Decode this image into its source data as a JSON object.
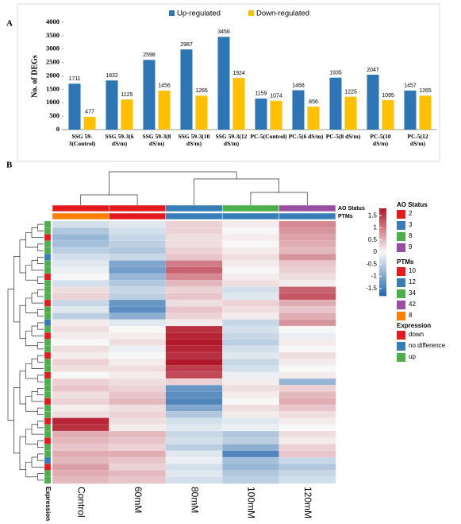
{
  "chart_data": [
    {
      "type": "bar",
      "panel_label": "A",
      "ylabel": "No. of DEGs",
      "categories": [
        "SSG 59-3(Control)",
        "SSG 59-3(6 dS/m)",
        "SSG 59-3(8 dS/m)",
        "SSG 59-3(10 dS/m)",
        "SSG 59-3(12 dS/m)",
        "PC-5(Control)",
        "PC-5(6 dS/m)",
        "PC-5(8 dS/m)",
        "PC-5(10 dS/m)",
        "PC-5(12 dS/m)"
      ],
      "series": [
        {
          "name": "Up-regulated",
          "color": "#2e75b6",
          "values": [
            1711,
            1832,
            2598,
            2987,
            3456,
            1159,
            1468,
            1935,
            2047,
            1457
          ]
        },
        {
          "name": "Down-regulated",
          "color": "#ffc000",
          "values": [
            477,
            1125,
            1456,
            1265,
            1924,
            1074,
            856,
            1225,
            1095,
            1265
          ]
        }
      ],
      "ylim": [
        0,
        4000
      ],
      "yticks": [
        0,
        500,
        1000,
        1500,
        2000,
        2500,
        3000,
        3500,
        4000
      ],
      "legend": "top"
    },
    {
      "type": "heatmap",
      "panel_label": "B",
      "columns": [
        "Control",
        "60mM",
        "80mM",
        "100mM",
        "120mM"
      ],
      "row_annotation_label": "Expression",
      "zlim": [
        -1.8,
        1.8
      ],
      "colorscale": [
        "#2166ac",
        "#f7f7f7",
        "#b2182b"
      ],
      "colorbar_ticks": [
        1.5,
        1,
        0.5,
        0,
        -0.5,
        -1,
        -1.5
      ],
      "ao_status_title": "AO Status",
      "ptms_title": "PTMs",
      "expression_title": "Expression",
      "ao_status_legend": [
        {
          "label": "2",
          "color": "#e41a1c"
        },
        {
          "label": "3",
          "color": "#377eb8"
        },
        {
          "label": "8",
          "color": "#4daf4a"
        },
        {
          "label": "9",
          "color": "#984ea3"
        }
      ],
      "ptms_legend": [
        {
          "label": "10",
          "color": "#e41a1c"
        },
        {
          "label": "12",
          "color": "#377eb8"
        },
        {
          "label": "34",
          "color": "#4daf4a"
        },
        {
          "label": "42",
          "color": "#984ea3"
        },
        {
          "label": "8",
          "color": "#ff7f00"
        }
      ],
      "expression_legend": [
        {
          "label": "down",
          "color": "#e41a1c"
        },
        {
          "label": "no difference",
          "color": "#377eb8"
        },
        {
          "label": "up",
          "color": "#4daf4a"
        }
      ],
      "ao_status": [
        "2",
        "2",
        "3",
        "8",
        "9"
      ],
      "ptms": [
        "8",
        "10",
        "12",
        "12",
        "12"
      ],
      "row_expression": [
        "up",
        "up",
        "down",
        "up",
        "up",
        "no difference",
        "up",
        "up",
        "down",
        "up",
        "up",
        "up",
        "down",
        "up",
        "up",
        "no difference",
        "up",
        "down",
        "up",
        "up",
        "down",
        "up",
        "up",
        "down",
        "up",
        "up",
        "up",
        "down",
        "up",
        "up",
        "down",
        "up",
        "up",
        "down",
        "up",
        "up",
        "no difference",
        "down",
        "up",
        "up"
      ],
      "matrix": [
        [
          -0.3,
          -0.2,
          0.3,
          0.1,
          0.9
        ],
        [
          -0.6,
          -0.3,
          0.3,
          0.0,
          0.8
        ],
        [
          -0.8,
          -0.4,
          0.2,
          0.1,
          0.7
        ],
        [
          -0.7,
          -0.5,
          0.2,
          0.0,
          0.6
        ],
        [
          -0.5,
          -0.6,
          0.3,
          0.1,
          0.5
        ],
        [
          -0.3,
          -0.4,
          0.4,
          0.2,
          0.8
        ],
        [
          -0.2,
          -1.0,
          1.0,
          0.1,
          0.4
        ],
        [
          -0.1,
          -1.1,
          1.2,
          0.0,
          0.3
        ],
        [
          0.0,
          -0.8,
          0.9,
          0.1,
          0.2
        ],
        [
          -0.3,
          -0.6,
          0.5,
          0.2,
          0.1
        ],
        [
          0.2,
          -0.4,
          0.3,
          -0.3,
          1.2
        ],
        [
          0.3,
          -0.5,
          0.4,
          -0.2,
          1.3
        ],
        [
          -0.4,
          -1.2,
          0.2,
          0.3,
          0.6
        ],
        [
          -0.2,
          -1.3,
          0.4,
          0.2,
          0.4
        ],
        [
          -0.5,
          -0.9,
          0.3,
          0.1,
          0.6
        ],
        [
          0.1,
          -0.2,
          0.1,
          -0.4,
          0.8
        ],
        [
          0.2,
          0.0,
          1.6,
          -0.3,
          0.0
        ],
        [
          0.1,
          0.1,
          1.7,
          -0.4,
          -0.1
        ],
        [
          0.0,
          0.2,
          1.8,
          -0.5,
          0.1
        ],
        [
          0.2,
          -0.1,
          1.7,
          -0.3,
          0.0
        ],
        [
          0.1,
          0.0,
          1.6,
          -0.2,
          0.2
        ],
        [
          0.3,
          0.1,
          1.8,
          -0.4,
          0.1
        ],
        [
          0.2,
          0.2,
          1.5,
          -0.3,
          0.0
        ],
        [
          0.0,
          0.1,
          1.4,
          -0.1,
          0.1
        ],
        [
          0.3,
          0.2,
          0.3,
          0.1,
          -0.8
        ],
        [
          0.4,
          0.3,
          -1.2,
          0.2,
          0.3
        ],
        [
          0.2,
          0.4,
          -1.3,
          0.1,
          0.5
        ],
        [
          0.3,
          0.5,
          -1.4,
          0.0,
          0.6
        ],
        [
          0.1,
          0.2,
          -1.0,
          0.2,
          0.4
        ],
        [
          0.2,
          0.3,
          -0.6,
          0.1,
          0.2
        ],
        [
          1.7,
          0.2,
          -0.3,
          -0.2,
          0.1
        ],
        [
          1.6,
          0.1,
          -0.2,
          -0.1,
          0.0
        ],
        [
          0.6,
          0.5,
          -0.4,
          -0.6,
          0.2
        ],
        [
          0.5,
          0.4,
          -0.3,
          -0.5,
          0.1
        ],
        [
          0.4,
          0.3,
          -0.5,
          -0.9,
          0.3
        ],
        [
          0.6,
          0.6,
          -0.2,
          -1.4,
          0.4
        ],
        [
          0.5,
          0.4,
          -0.1,
          -0.7,
          -0.4
        ],
        [
          0.7,
          0.3,
          -0.3,
          -0.8,
          -0.6
        ],
        [
          0.6,
          0.5,
          -0.2,
          -0.6,
          -0.4
        ],
        [
          0.5,
          0.4,
          -0.3,
          -0.5,
          -0.3
        ]
      ]
    }
  ]
}
